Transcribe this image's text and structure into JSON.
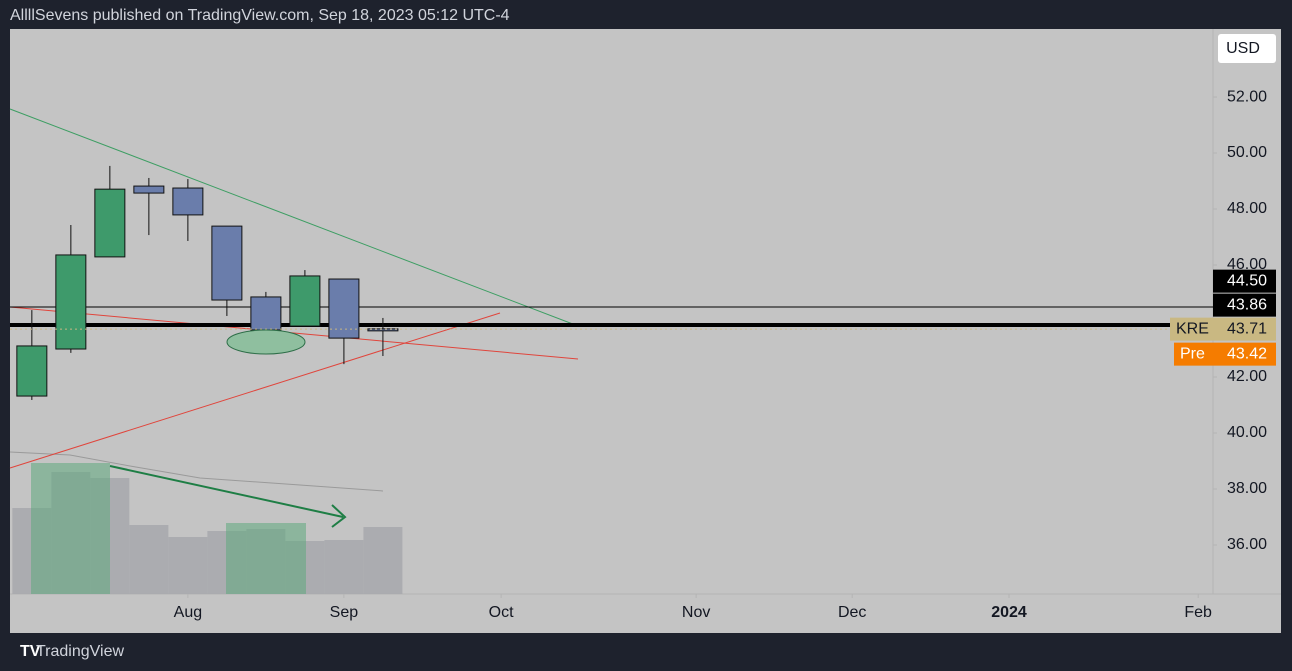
{
  "header": {
    "title": "AllllSevens published on TradingView.com, Sep 18, 2023 05:12 UTC-4"
  },
  "footer": {
    "brand": "TradingView"
  },
  "chart_data": {
    "type": "candlestick",
    "currency": "USD",
    "open": [
      41.32,
      43.0,
      46.29,
      48.82,
      48.75,
      47.39,
      44.86,
      43.82,
      45.5,
      43.72
    ],
    "high": [
      44.39,
      47.43,
      49.54,
      49.11,
      49.07,
      47.39,
      45.04,
      45.82,
      45.5,
      44.11
    ],
    "low": [
      41.18,
      42.86,
      46.29,
      47.07,
      46.86,
      44.18,
      42.89,
      43.82,
      42.46,
      42.75
    ],
    "close": [
      43.11,
      46.36,
      48.71,
      48.57,
      47.79,
      44.75,
      43.68,
      45.61,
      43.39,
      43.71
    ],
    "up_color": "#3e9a6b",
    "down_color": "#6a7dab",
    "volume": [
      86,
      122,
      116,
      69,
      57,
      63,
      65,
      53,
      54,
      67
    ],
    "volume_color": "#a7a8ad",
    "xlim": [
      -0.56,
      30.28
    ],
    "xticks": [
      {
        "value": 4,
        "label": "Aug"
      },
      {
        "value": 8,
        "label": "Sep"
      },
      {
        "value": 12.03,
        "label": "Oct"
      },
      {
        "value": 17.03,
        "label": "Nov"
      },
      {
        "value": 21.03,
        "label": "Dec"
      },
      {
        "value": 25.05,
        "label": "2024"
      },
      {
        "value": 29.9,
        "label": "Feb"
      }
    ],
    "ylim": [
      34.25,
      54.43
    ],
    "yticks": [
      {
        "value": 36,
        "label": "36.00"
      },
      {
        "value": 38,
        "label": "38.00"
      },
      {
        "value": 40,
        "label": "40.00"
      },
      {
        "value": 42,
        "label": "42.00"
      },
      {
        "value": 46,
        "label": "46.00"
      },
      {
        "value": 48,
        "label": "48.00"
      },
      {
        "value": 50,
        "label": "50.00"
      },
      {
        "value": 52,
        "label": "52.00"
      }
    ],
    "grid": false,
    "levels": [
      {
        "value": 44.5,
        "label": "44.50"
      },
      {
        "value": 43.86,
        "label": "43.86"
      }
    ],
    "last_price": {
      "name": "KRE",
      "value": 43.71,
      "label": "43.71"
    },
    "premarket": {
      "name": "Pre",
      "value": 43.42,
      "label": "43.42"
    }
  }
}
